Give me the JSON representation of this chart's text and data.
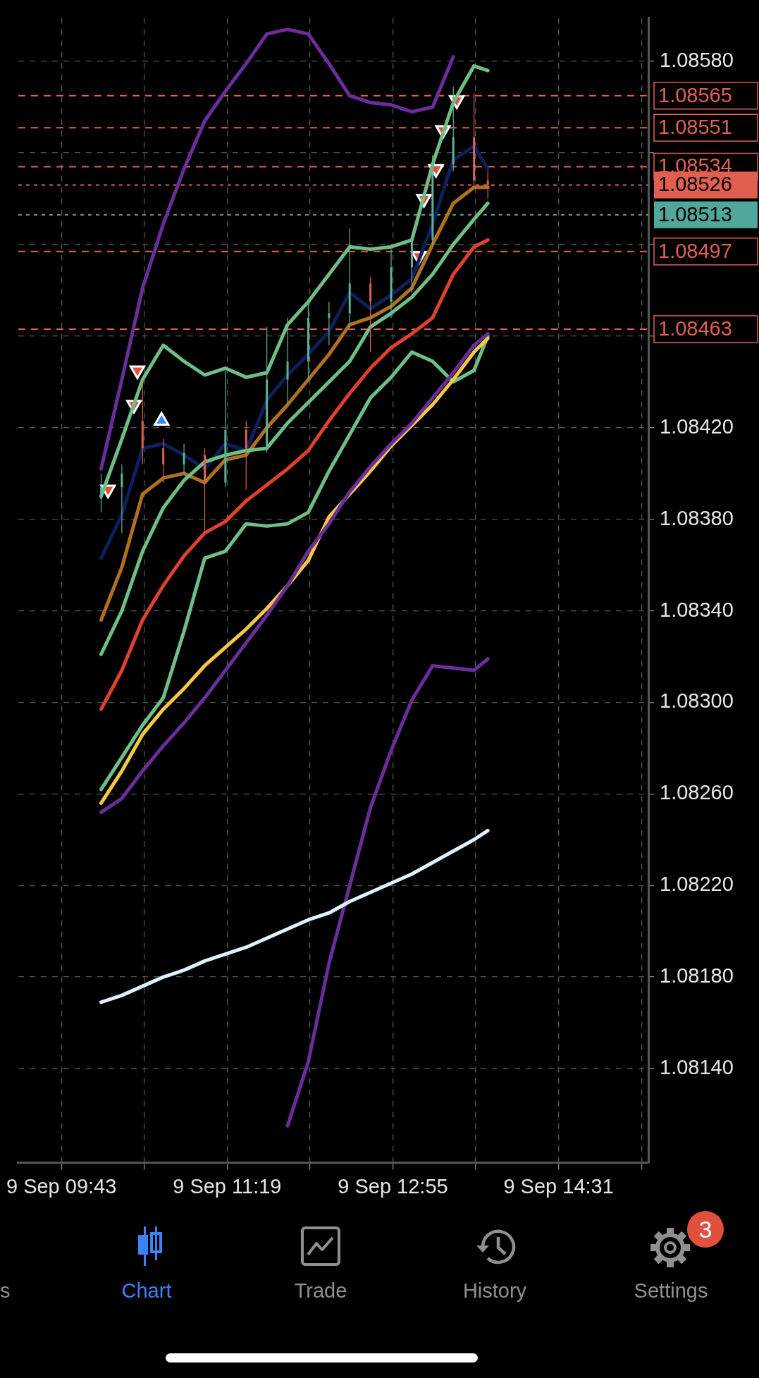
{
  "chart_data": {
    "type": "candlestick",
    "x": [
      "--09-09T10:06",
      "--09-09T10:18",
      "--09-09T10:30",
      "--09-09T10:42",
      "--09-09T10:54",
      "--09-09T11:06",
      "--09-09T11:18",
      "--09-09T11:30",
      "--09-09T11:42",
      "--09-09T11:54",
      "--09-09T12:06",
      "--09-09T12:18",
      "--09-09T12:30",
      "--09-09T12:42",
      "--09-09T12:54",
      "--09-09T13:06",
      "--09-09T13:18",
      "--09-09T13:30",
      "--09-09T13:42",
      "--09-09T13:50"
    ],
    "ohlc": [
      [
        1.08389,
        1.084,
        1.08383,
        1.08394
      ],
      [
        1.08394,
        1.08404,
        1.08374,
        1.084
      ],
      [
        1.08423,
        1.08441,
        1.08404,
        1.08411
      ],
      [
        1.08411,
        1.08415,
        1.08396,
        1.08404
      ],
      [
        1.08404,
        1.08413,
        1.084,
        1.08409
      ],
      [
        1.08408,
        1.08411,
        1.08374,
        1.08396
      ],
      [
        1.08396,
        1.08445,
        1.08394,
        1.08419
      ],
      [
        1.08419,
        1.08423,
        1.08393,
        1.08411
      ],
      [
        1.08411,
        1.08464,
        1.08409,
        1.08441
      ],
      [
        1.08441,
        1.08468,
        1.0843,
        1.08449
      ],
      [
        1.08449,
        1.08475,
        1.08441,
        1.08468
      ],
      [
        1.08468,
        1.08475,
        1.08456,
        1.0847
      ],
      [
        1.0847,
        1.08507,
        1.08464,
        1.08483
      ],
      [
        1.08483,
        1.08486,
        1.08453,
        1.08475
      ],
      [
        1.08475,
        1.08498,
        1.08468,
        1.0849
      ],
      [
        1.0849,
        1.08503,
        1.08479,
        1.08502
      ],
      [
        1.08502,
        1.08539,
        1.085,
        1.08535
      ],
      [
        1.08535,
        1.08569,
        1.08532,
        1.08547
      ],
      [
        1.08547,
        1.08566,
        1.08524,
        1.08528
      ],
      [
        1.08528,
        1.08532,
        1.0852,
        1.08526
      ]
    ],
    "series": [
      {
        "type": "line",
        "color": "#dff3ff",
        "values": [
          1.08169,
          1.08172,
          1.08176,
          1.0818,
          1.08183,
          1.08187,
          1.0819,
          1.08193,
          1.08197,
          1.08201,
          1.08205,
          1.08208,
          1.08213,
          1.08217,
          1.08221,
          1.08225,
          1.0823,
          1.08235,
          1.0824,
          1.08244
        ]
      },
      {
        "type": "line",
        "color": "#6a2d9a",
        "values": [
          null,
          null,
          null,
          null,
          null,
          null,
          null,
          null,
          null,
          1.08115,
          1.08143,
          1.08186,
          1.0822,
          1.08254,
          1.08279,
          1.08301,
          1.08316,
          1.08315,
          1.08314,
          1.08319
        ]
      },
      {
        "type": "line",
        "color": "#6a2d9a",
        "values": [
          1.08252,
          1.08258,
          1.0827,
          1.08281,
          1.08291,
          1.08302,
          1.08314,
          1.08326,
          1.08338,
          1.08351,
          1.08366,
          1.08378,
          1.08392,
          1.08403,
          1.08413,
          1.08422,
          1.08433,
          1.08444,
          1.08456,
          1.08461
        ]
      },
      {
        "type": "line",
        "color": "#6a2d9a",
        "values": [
          1.08402,
          1.08441,
          1.08481,
          1.08509,
          1.08533,
          1.08554,
          1.08567,
          1.08579,
          1.08592,
          1.08594,
          1.08592,
          1.08579,
          1.08565,
          1.08562,
          1.08561,
          1.08558,
          1.0856,
          1.08582,
          null,
          null
        ]
      },
      {
        "type": "line",
        "color": "#f5c842",
        "values": [
          1.08256,
          1.0827,
          1.08286,
          1.08297,
          1.08306,
          1.08316,
          1.08324,
          1.08332,
          1.08341,
          1.08351,
          1.08362,
          1.08381,
          1.08391,
          1.08401,
          1.08412,
          1.08421,
          1.0843,
          1.08441,
          1.08453,
          1.08459
        ]
      },
      {
        "type": "line",
        "color": "#e0402c",
        "values": [
          1.08297,
          1.08314,
          1.08336,
          1.08351,
          1.08364,
          1.08374,
          1.08379,
          1.08388,
          1.08395,
          1.08402,
          1.0841,
          1.08423,
          1.08435,
          1.08446,
          1.08455,
          1.08461,
          1.08468,
          1.08487,
          1.08499,
          1.08502
        ]
      },
      {
        "type": "line",
        "color": "#6dbf85",
        "values": [
          1.08262,
          1.08276,
          1.0829,
          1.08302,
          1.08331,
          1.08363,
          1.08366,
          1.08378,
          1.08377,
          1.08378,
          1.08383,
          1.08401,
          1.08417,
          1.08433,
          1.08442,
          1.08453,
          1.08449,
          1.0844,
          1.08445,
          1.0846
        ]
      },
      {
        "type": "line",
        "color": "#6dbf85",
        "values": [
          1.08321,
          1.0834,
          1.08366,
          1.08385,
          1.08397,
          1.08405,
          1.08408,
          1.0841,
          1.08411,
          1.08422,
          1.08431,
          1.0844,
          1.08449,
          1.08464,
          1.0847,
          1.08477,
          1.08487,
          1.085,
          1.08511,
          1.08518
        ]
      },
      {
        "type": "line",
        "color": "#6dbf85",
        "values": [
          1.0839,
          1.08415,
          1.08441,
          1.08456,
          1.08449,
          1.08443,
          1.08446,
          1.08442,
          1.08444,
          1.08465,
          1.08475,
          1.08487,
          1.08499,
          1.08498,
          1.08499,
          1.08502,
          1.08535,
          1.08562,
          1.08578,
          1.08576
        ]
      },
      {
        "type": "line",
        "color": "#b07020",
        "values": [
          1.08336,
          1.08359,
          1.08391,
          1.08398,
          1.084,
          1.08396,
          1.08406,
          1.08408,
          1.0842,
          1.0843,
          1.08441,
          1.08452,
          1.08465,
          1.08468,
          1.08473,
          1.08481,
          1.085,
          1.08518,
          1.08525,
          1.08525
        ]
      },
      {
        "type": "line",
        "color": "#0d1f5c",
        "values": [
          1.08363,
          1.08382,
          1.08411,
          1.08413,
          1.08408,
          1.08402,
          1.08413,
          1.0841,
          1.08432,
          1.08443,
          1.08452,
          1.08462,
          1.08479,
          1.08472,
          1.08478,
          1.08485,
          1.08509,
          1.08537,
          1.08543,
          1.08533
        ]
      },
      {
        "type": "scatter",
        "marker": "triangle-down",
        "color": "#e0503c",
        "x": [
          "--09-09T10:10",
          "--09-09T10:25",
          "--09-09T10:27",
          "--09-09T13:10",
          "--09-09T13:13",
          "--09-09T13:20",
          "--09-09T13:24",
          "--09-09T13:32"
        ],
        "values": [
          1.08393,
          1.0843,
          1.08445,
          1.08495,
          1.0852,
          1.08533,
          1.0855,
          1.08563
        ]
      },
      {
        "type": "scatter",
        "marker": "triangle",
        "color": "#3b82f6",
        "x": [
          "--09-09T10:41"
        ],
        "values": [
          1.08423
        ]
      }
    ],
    "xlim": [
      "--09-09T09:18",
      "--09-09T15:23"
    ],
    "xticks": [
      {
        "value": "--09-09T09:43",
        "label": "9 Sep 09:43"
      },
      {
        "value": "--09-09T10:31",
        "label": null
      },
      {
        "value": "--09-09T11:19",
        "label": "9 Sep 11:19"
      },
      {
        "value": "--09-09T12:07",
        "label": null
      },
      {
        "value": "--09-09T12:55",
        "label": "9 Sep 12:55"
      },
      {
        "value": "--09-09T13:43",
        "label": null
      },
      {
        "value": "--09-09T14:31",
        "label": "9 Sep 14:31"
      },
      {
        "value": "--09-09T15:19",
        "label": null
      }
    ],
    "ylim": [
      1.08099,
      1.08599
    ],
    "yticks": [
      {
        "value": 1.0814,
        "label": "1.08140"
      },
      {
        "value": 1.0818,
        "label": "1.08180"
      },
      {
        "value": 1.0822,
        "label": "1.08220"
      },
      {
        "value": 1.0826,
        "label": "1.08260"
      },
      {
        "value": 1.083,
        "label": "1.08300"
      },
      {
        "value": 1.0834,
        "label": "1.08340"
      },
      {
        "value": 1.0838,
        "label": "1.08380"
      },
      {
        "value": 1.0842,
        "label": "1.08420"
      },
      {
        "value": 1.0846,
        "label": null
      },
      {
        "value": 1.085,
        "label": null
      },
      {
        "value": 1.0854,
        "label": null
      },
      {
        "value": 1.0858,
        "label": "1.08580"
      }
    ],
    "grid": true,
    "ref_lines": [
      {
        "axis": "y",
        "value": 1.08565,
        "label": "1.08565",
        "color": "#e0604f",
        "line_style": "dashed"
      },
      {
        "axis": "y",
        "value": 1.08551,
        "label": "1.08551",
        "color": "#e0604f",
        "line_style": "dashed"
      },
      {
        "axis": "y",
        "value": 1.08534,
        "label": "1.08534",
        "color": "#e0604f",
        "line_style": "dashed"
      },
      {
        "axis": "y",
        "value": 1.08526,
        "label": "1.08526",
        "color": "#e0604f",
        "line_style": "dotted"
      },
      {
        "axis": "y",
        "value": 1.08513,
        "label": "1.08513",
        "color": "#4fa89a",
        "line_style": "dotted"
      },
      {
        "axis": "y",
        "value": 1.08497,
        "label": "1.08497",
        "color": "#e0604f",
        "line_style": "dashed"
      },
      {
        "axis": "y",
        "value": 1.08463,
        "label": "1.08463",
        "color": "#e0604f",
        "line_style": "dashed"
      }
    ],
    "annotations": [
      "s",
      "Chart",
      "Trade",
      "History",
      "Settings",
      "3"
    ]
  }
}
